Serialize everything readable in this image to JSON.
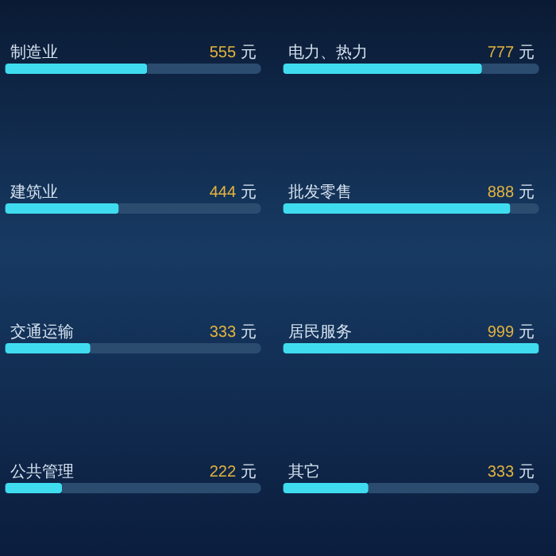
{
  "chart_data": [
    {
      "type": "bar",
      "orientation": "horizontal",
      "categories": [
        "制造业",
        "建筑业",
        "交通运输",
        "公共管理"
      ],
      "values": [
        555,
        444,
        333,
        222
      ],
      "value_labels": [
        "555 元",
        "444 元",
        "333 元",
        "222 元"
      ],
      "color": "#3fdcef",
      "xlim": [
        0,
        1000
      ],
      "tick_labels": "y"
    },
    {
      "type": "bar",
      "orientation": "horizontal",
      "categories": [
        "电力、热力",
        "批发零售",
        "居民服务",
        "其它"
      ],
      "values": [
        777,
        888,
        999,
        333
      ],
      "value_labels": [
        "777 元",
        "888 元",
        "999 元",
        "333 元"
      ],
      "color": "#3fdcef",
      "xlim": [
        0,
        1000
      ],
      "tick_labels": "y"
    }
  ]
}
